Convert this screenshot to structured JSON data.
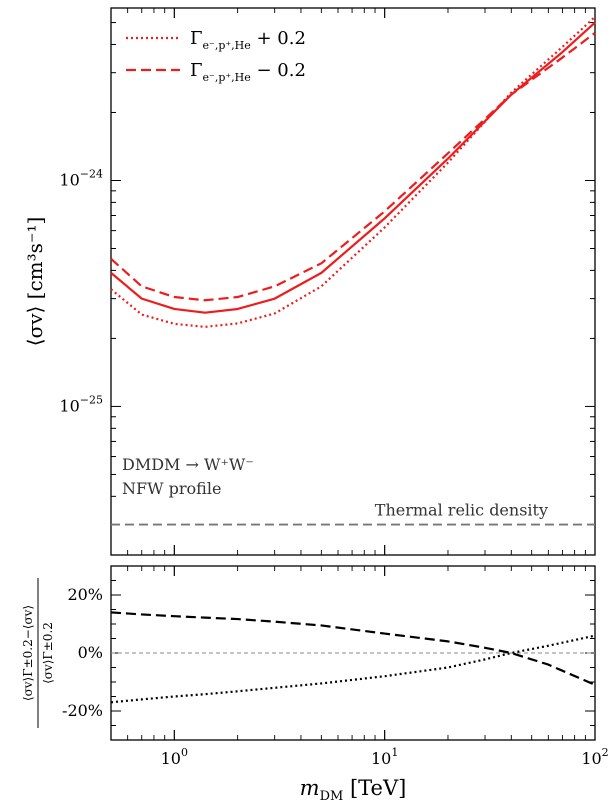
{
  "chart_data": [
    {
      "type": "line",
      "panel": "main",
      "xscale": "log",
      "yscale": "log",
      "xlim": [
        0.5,
        100
      ],
      "ylim": [
        2.2e-26,
        5.8e-24
      ],
      "ylabel": "⟨σv⟩ [cm³s⁻¹]",
      "yticks": [
        {
          "value": 1e-24,
          "label": "10",
          "exp": "−24"
        },
        {
          "value": 1e-25,
          "label": "10",
          "exp": "−25"
        }
      ],
      "x": [
        0.5,
        0.7,
        1.0,
        1.4,
        2.0,
        3.0,
        5.0,
        10,
        20,
        40,
        70,
        100
      ],
      "legend_position": "top-left",
      "series": [
        {
          "style": "solid",
          "color": "#ee1c1c",
          "values": [
            3.9e-25,
            3e-25,
            2.7e-25,
            2.6e-25,
            2.7e-25,
            3e-25,
            3.9e-25,
            6.8e-25,
            1.25e-24,
            2.4e-24,
            3.7e-24,
            5e-24
          ]
        },
        {
          "name": "Γ",
          "name_sub": "e⁻,p⁺,He",
          "name_suffix": "+ 0.2",
          "style": "dotted",
          "color": "#ee1c1c",
          "values": [
            3.3e-25,
            2.55e-25,
            2.32e-25,
            2.25e-25,
            2.33e-25,
            2.58e-25,
            3.4e-25,
            6.2e-25,
            1.2e-24,
            2.45e-24,
            3.9e-24,
            5.3e-24
          ]
        },
        {
          "name": "Γ",
          "name_sub": "e⁻,p⁺,He",
          "name_suffix": "− 0.2",
          "style": "dashed",
          "color": "#ee1c1c",
          "values": [
            4.5e-25,
            3.4e-25,
            3.05e-25,
            2.95e-25,
            3.05e-25,
            3.4e-25,
            4.3e-25,
            7.3e-25,
            1.32e-24,
            2.4e-24,
            3.5e-24,
            4.5e-24
          ]
        }
      ],
      "reference_line": {
        "label": "Thermal relic density",
        "value": 3e-26,
        "color": "#777777",
        "style": "dashed"
      },
      "annotations": [
        "DMDM → W⁺W⁻",
        "NFW profile"
      ]
    },
    {
      "type": "line",
      "panel": "ratio",
      "xscale": "log",
      "xlim": [
        0.5,
        100
      ],
      "ylim": [
        -0.3,
        0.3
      ],
      "xlabel": "m",
      "xlabel_sub": "DM",
      "xlabel_unit": "[TeV]",
      "ylabel_num": "⟨σv⟩Γ±0.2−⟨σv⟩",
      "ylabel_den": "⟨σv⟩Γ±0.2",
      "xticks": [
        {
          "value": 1,
          "label": "10",
          "exp": "0"
        },
        {
          "value": 10,
          "label": "10",
          "exp": "1"
        },
        {
          "value": 100,
          "label": "10",
          "exp": "2"
        }
      ],
      "yticks": [
        {
          "value": 0.2,
          "label": "20%"
        },
        {
          "value": 0,
          "label": "0%"
        },
        {
          "value": -0.2,
          "label": "-20%"
        }
      ],
      "x": [
        0.5,
        0.7,
        1.0,
        1.4,
        2.0,
        3.0,
        5.0,
        10,
        20,
        30,
        40,
        60,
        100
      ],
      "series": [
        {
          "style": "dashed",
          "color": "#000000",
          "values": [
            0.14,
            0.133,
            0.127,
            0.122,
            0.117,
            0.108,
            0.095,
            0.067,
            0.04,
            0.018,
            0.0,
            -0.04,
            -0.11
          ]
        },
        {
          "style": "dotted",
          "color": "#000000",
          "values": [
            -0.17,
            -0.16,
            -0.15,
            -0.142,
            -0.132,
            -0.12,
            -0.105,
            -0.08,
            -0.05,
            -0.022,
            0.0,
            0.025,
            0.06
          ]
        }
      ],
      "reference_line": {
        "value": 0,
        "color": "#888888",
        "style": "dashed"
      }
    }
  ]
}
